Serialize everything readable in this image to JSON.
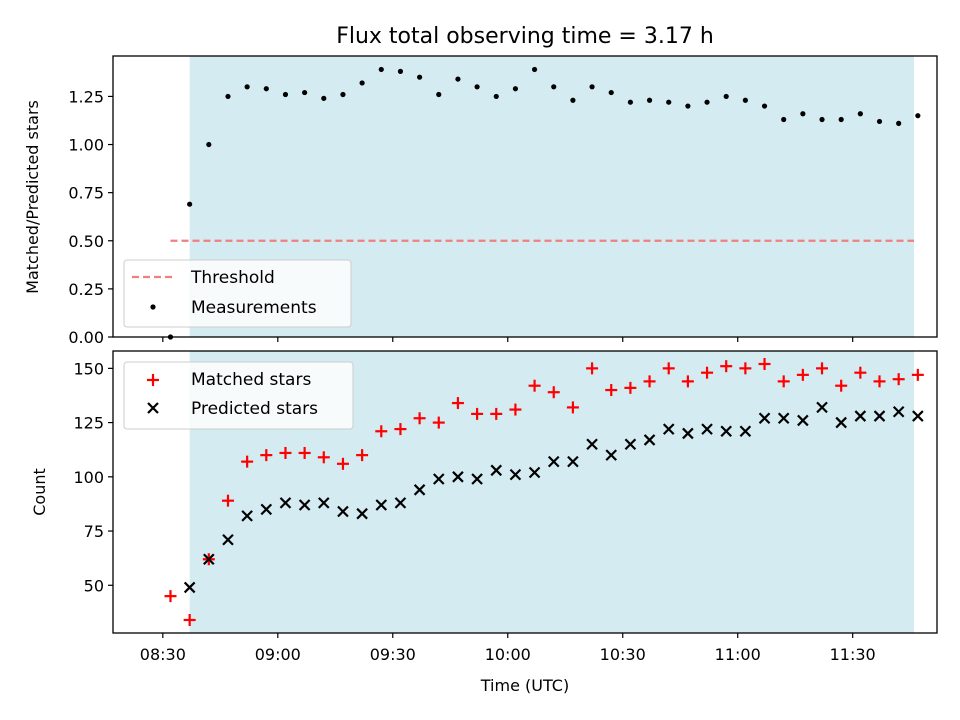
{
  "title": "Flux total observing time = 3.17 h",
  "colors": {
    "shade": "#d4ebf1",
    "threshold": "#f08080",
    "matched": "#ff0000",
    "predicted": "#000000",
    "measurements": "#000000"
  },
  "chart_data": [
    {
      "type": "scatter",
      "ylabel": "Matched/Predicted stars",
      "xlim": [
        "08:17",
        "11:52"
      ],
      "ylim": [
        0,
        1.46
      ],
      "yticks": [
        "0.00",
        "0.25",
        "0.50",
        "0.75",
        "1.00",
        "1.25"
      ],
      "ytick_values": [
        0,
        0.25,
        0.5,
        0.75,
        1.0,
        1.25
      ],
      "shaded_region": [
        "08:37",
        "11:46"
      ],
      "threshold": {
        "name": "Threshold",
        "y": 0.5,
        "x": [
          "08:32",
          "11:46"
        ],
        "style": "dashed"
      },
      "series": [
        {
          "name": "Measurements",
          "marker": "dot",
          "x": [
            "08:32",
            "08:37",
            "08:42",
            "08:47",
            "08:52",
            "08:57",
            "09:02",
            "09:07",
            "09:12",
            "09:17",
            "09:22",
            "09:27",
            "09:32",
            "09:37",
            "09:42",
            "09:47",
            "09:52",
            "09:57",
            "10:02",
            "10:07",
            "10:12",
            "10:17",
            "10:22",
            "10:27",
            "10:32",
            "10:37",
            "10:42",
            "10:47",
            "10:52",
            "10:57",
            "11:02",
            "11:07",
            "11:12",
            "11:17",
            "11:22",
            "11:27",
            "11:32",
            "11:37",
            "11:42",
            "11:47"
          ],
          "values": [
            0.0,
            0.69,
            1.0,
            1.25,
            1.3,
            1.29,
            1.26,
            1.27,
            1.24,
            1.26,
            1.32,
            1.39,
            1.38,
            1.35,
            1.26,
            1.34,
            1.3,
            1.25,
            1.29,
            1.39,
            1.3,
            1.23,
            1.3,
            1.27,
            1.22,
            1.23,
            1.22,
            1.2,
            1.22,
            1.25,
            1.23,
            1.2,
            1.13,
            1.16,
            1.13,
            1.13,
            1.16,
            1.12,
            1.11,
            1.15
          ]
        }
      ],
      "legend": "lower-left"
    },
    {
      "type": "scatter",
      "xlabel": "Time (UTC)",
      "ylabel": "Count",
      "xlim": [
        "08:17",
        "11:52"
      ],
      "ylim": [
        28,
        158
      ],
      "yticks": [
        "50",
        "75",
        "100",
        "125",
        "150"
      ],
      "ytick_values": [
        50,
        75,
        100,
        125,
        150
      ],
      "xticks": [
        "08:30",
        "09:00",
        "09:30",
        "10:00",
        "10:30",
        "11:00",
        "11:30"
      ],
      "shaded_region": [
        "08:37",
        "11:46"
      ],
      "series": [
        {
          "name": "Matched stars",
          "marker": "plus",
          "x": [
            "08:32",
            "08:37",
            "08:42",
            "08:47",
            "08:52",
            "08:57",
            "09:02",
            "09:07",
            "09:12",
            "09:17",
            "09:22",
            "09:27",
            "09:32",
            "09:37",
            "09:42",
            "09:47",
            "09:52",
            "09:57",
            "10:02",
            "10:07",
            "10:12",
            "10:17",
            "10:22",
            "10:27",
            "10:32",
            "10:37",
            "10:42",
            "10:47",
            "10:52",
            "10:57",
            "11:02",
            "11:07",
            "11:12",
            "11:17",
            "11:22",
            "11:27",
            "11:32",
            "11:37",
            "11:42",
            "11:47"
          ],
          "values": [
            45,
            34,
            62,
            89,
            107,
            110,
            111,
            111,
            109,
            106,
            110,
            121,
            122,
            127,
            125,
            134,
            129,
            129,
            131,
            142,
            139,
            132,
            150,
            140,
            141,
            144,
            150,
            144,
            148,
            151,
            150,
            152,
            144,
            147,
            150,
            142,
            148,
            144,
            145,
            147
          ]
        },
        {
          "name": "Predicted stars",
          "marker": "x",
          "x": [
            "08:37",
            "08:42",
            "08:47",
            "08:52",
            "08:57",
            "09:02",
            "09:07",
            "09:12",
            "09:17",
            "09:22",
            "09:27",
            "09:32",
            "09:37",
            "09:42",
            "09:47",
            "09:52",
            "09:57",
            "10:02",
            "10:07",
            "10:12",
            "10:17",
            "10:22",
            "10:27",
            "10:32",
            "10:37",
            "10:42",
            "10:47",
            "10:52",
            "10:57",
            "11:02",
            "11:07",
            "11:12",
            "11:17",
            "11:22",
            "11:27",
            "11:32",
            "11:37",
            "11:42",
            "11:47"
          ],
          "values": [
            49,
            62,
            71,
            82,
            85,
            88,
            87,
            88,
            84,
            83,
            87,
            88,
            94,
            99,
            100,
            99,
            103,
            101,
            102,
            107,
            107,
            115,
            110,
            115,
            117,
            122,
            120,
            122,
            121,
            121,
            127,
            127,
            126,
            132,
            125,
            128,
            128,
            130,
            128
          ]
        }
      ],
      "legend": "upper-left"
    }
  ]
}
